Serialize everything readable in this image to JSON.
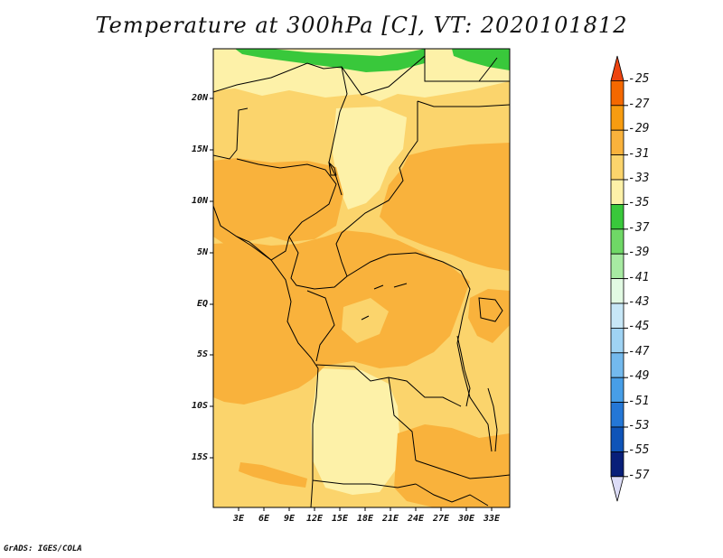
{
  "title": "Temperature at 300hPa [C], VT: 2020101812",
  "footer": "GrADS: IGES/COLA",
  "latitude_labels": [
    "20N",
    "15N",
    "10N",
    "5N",
    "EQ",
    "5S",
    "10S",
    "15S"
  ],
  "longitude_labels": [
    "3E",
    "6E",
    "9E",
    "12E",
    "15E",
    "18E",
    "21E",
    "24E",
    "27E",
    "30E",
    "33E"
  ],
  "colorbar": {
    "labels": [
      "-25",
      "-27",
      "-29",
      "-31",
      "-33",
      "-35",
      "-37",
      "-39",
      "-41",
      "-43",
      "-45",
      "-47",
      "-49",
      "-51",
      "-53",
      "-55",
      "-57"
    ],
    "colors": [
      "#ee4410",
      "#f46800",
      "#f79c10",
      "#f9b23c",
      "#fbd46c",
      "#fdf1a8",
      "#39c83b",
      "#6fd866",
      "#a7eaa2",
      "#e2fae3",
      "#c7e7f7",
      "#9fd3f3",
      "#73b9ed",
      "#479ee7",
      "#2477d6",
      "#0f54b8",
      "#081f79",
      "#dcdcf7"
    ]
  },
  "field_colors": {
    "green": "#39c83b",
    "pale": "#fdf1a8",
    "light": "#fbd46c",
    "orange": "#f9b23c"
  }
}
